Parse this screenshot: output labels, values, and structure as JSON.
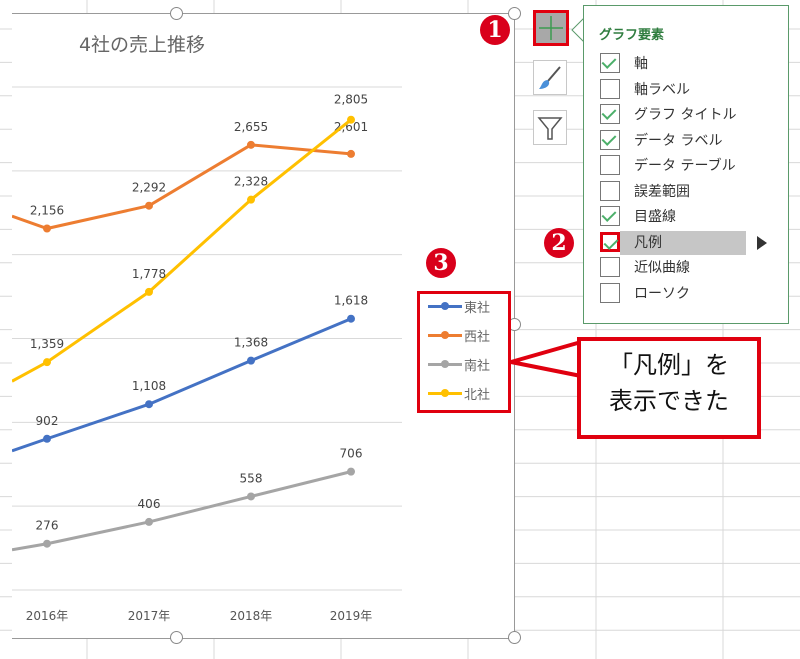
{
  "chart": {
    "title": "4社の売上推移"
  },
  "chart_data": {
    "type": "line",
    "title": "4社の売上推移",
    "categories": [
      "2016年",
      "2017年",
      "2018年",
      "2019年"
    ],
    "ylim": [
      0,
      3000
    ],
    "ytick_step": 500,
    "grid": true,
    "legend_placement": "right",
    "data_labels": true,
    "series": [
      {
        "name": "東社",
        "color": "#4472c4",
        "values": [
          902,
          1108,
          1368,
          1618
        ],
        "left_edge_value": 830
      },
      {
        "name": "西社",
        "color": "#ed7d31",
        "values": [
          2156,
          2292,
          2655,
          2601
        ],
        "left_edge_value": 2230
      },
      {
        "name": "南社",
        "color": "#a5a5a5",
        "values": [
          276,
          406,
          558,
          706
        ],
        "left_edge_value": 240
      },
      {
        "name": "北社",
        "color": "#ffc000",
        "values": [
          1359,
          1778,
          2328,
          2805
        ],
        "left_edge_value": 1245
      }
    ]
  },
  "chart_elements_panel": {
    "title": "グラフ要素",
    "options": [
      {
        "label": "軸",
        "checked": true
      },
      {
        "label": "軸ラベル",
        "checked": false
      },
      {
        "label": "グラフ タイトル",
        "checked": true
      },
      {
        "label": "データ ラベル",
        "checked": true
      },
      {
        "label": "データ テーブル",
        "checked": false
      },
      {
        "label": "誤差範囲",
        "checked": false
      },
      {
        "label": "目盛線",
        "checked": true
      },
      {
        "label": "凡例",
        "checked": true,
        "highlighted": true
      },
      {
        "label": "近似曲線",
        "checked": false
      },
      {
        "label": "ローソク",
        "checked": false
      }
    ]
  },
  "side_buttons": {
    "chart_elements_icon": "plus-icon",
    "chart_styles_icon": "brush-icon",
    "chart_filters_icon": "funnel-icon"
  },
  "annotations": {
    "badge1": "1",
    "badge2": "2",
    "badge3": "3",
    "callout_line1": "「凡例」を",
    "callout_line2": "表示できた",
    "accent": "#e0000f"
  }
}
